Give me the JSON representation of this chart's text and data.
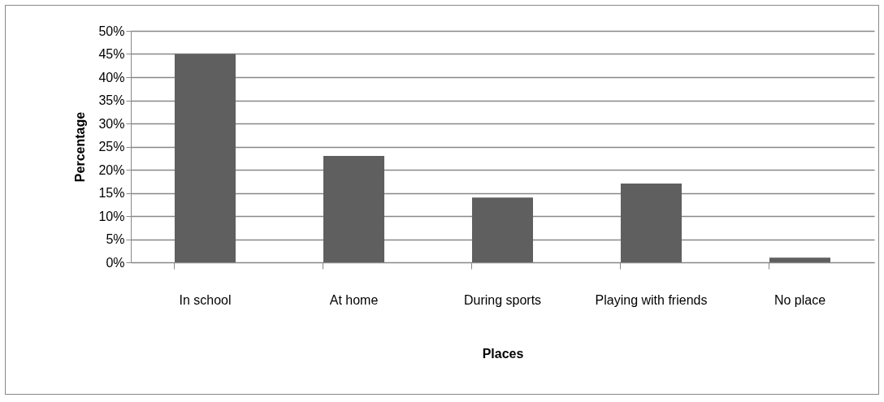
{
  "chart_data": {
    "type": "bar",
    "xlabel": "Places",
    "ylabel": "Percentage",
    "categories": [
      "In school",
      "At home",
      "During sports",
      "Playing with friends",
      "No place"
    ],
    "values": [
      45,
      23,
      14,
      17,
      1
    ],
    "color": "#5f5f5f",
    "ylim": [
      0,
      50
    ],
    "yticks": [
      {
        "value": 0,
        "label": "0%"
      },
      {
        "value": 5,
        "label": "5%"
      },
      {
        "value": 10,
        "label": "10%"
      },
      {
        "value": 15,
        "label": "15%"
      },
      {
        "value": 20,
        "label": "20%"
      },
      {
        "value": 25,
        "label": "25%"
      },
      {
        "value": 30,
        "label": "30%"
      },
      {
        "value": 35,
        "label": "35%"
      },
      {
        "value": 40,
        "label": "40%"
      },
      {
        "value": 45,
        "label": "45%"
      },
      {
        "value": 50,
        "label": "50%"
      }
    ],
    "grid": "y"
  }
}
